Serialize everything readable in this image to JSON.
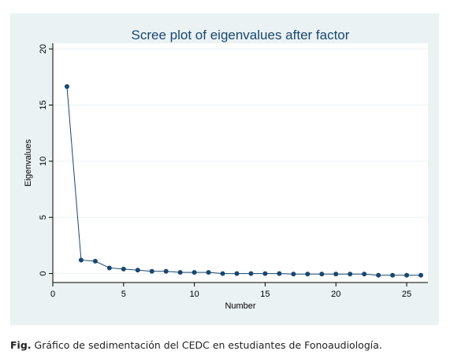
{
  "chart_data": {
    "type": "line",
    "title": "Scree plot of eigenvalues after factor",
    "xlabel": "Number",
    "ylabel": "Eigenvalues",
    "xlim": [
      0,
      26.5
    ],
    "ylim": [
      -0.8,
      20.5
    ],
    "xticks": [
      0,
      5,
      10,
      15,
      20,
      25
    ],
    "yticks": [
      0,
      5,
      10,
      15,
      20
    ],
    "grid": true,
    "x": [
      1,
      2,
      3,
      4,
      5,
      6,
      7,
      8,
      9,
      10,
      11,
      12,
      13,
      14,
      15,
      16,
      17,
      18,
      19,
      20,
      21,
      22,
      23,
      24,
      25,
      26
    ],
    "values": [
      16.65,
      1.2,
      1.1,
      0.5,
      0.4,
      0.3,
      0.2,
      0.2,
      0.1,
      0.1,
      0.1,
      0.0,
      0.0,
      0.0,
      0.0,
      0.0,
      -0.05,
      -0.05,
      -0.05,
      -0.05,
      -0.05,
      -0.05,
      -0.15,
      -0.15,
      -0.15,
      -0.15
    ],
    "colors": {
      "line": "#1a476f",
      "marker": "#1a476f",
      "plot_bg": "#ffffff",
      "outer_bg": "#eaf2f3",
      "grid": "#eaf2f3"
    }
  },
  "caption": {
    "label": "Fig.",
    "text": " Gráfico de sedimentación del CEDC en estudiantes de Fonoaudiología."
  }
}
